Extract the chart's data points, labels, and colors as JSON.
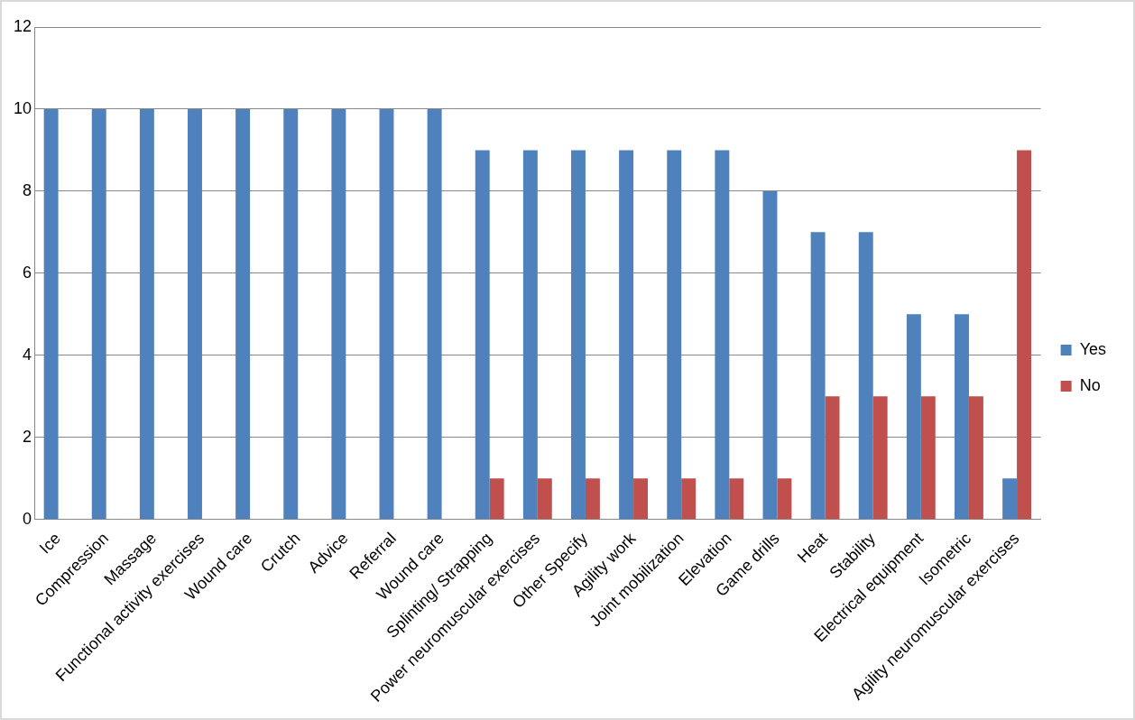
{
  "chart_data": {
    "type": "bar",
    "categories": [
      "Ice",
      "Compression",
      "Massage",
      "Functional activity exercises",
      "Wound care",
      "Crutch",
      "Advice",
      "Referral",
      "Wound care",
      "Splinting/ Strapping",
      "Power neuromuscular exercises",
      "Other Specify",
      "Agility work",
      "Joint mobilization",
      "Elevation",
      "Game drills",
      "Heat",
      "Stability",
      "Electrical equipment",
      "Isometric",
      "Agility neuromuscular exercises"
    ],
    "series": [
      {
        "name": "Yes",
        "color": "#4f81bd",
        "values": [
          10,
          10,
          10,
          10,
          10,
          10,
          10,
          10,
          10,
          9,
          9,
          9,
          9,
          9,
          9,
          8,
          7,
          7,
          5,
          5,
          1
        ]
      },
      {
        "name": "No",
        "color": "#c0504d",
        "values": [
          0,
          0,
          0,
          0,
          0,
          0,
          0,
          0,
          0,
          1,
          1,
          1,
          1,
          1,
          1,
          1,
          3,
          3,
          3,
          3,
          9
        ]
      }
    ],
    "ylim": [
      0,
      12
    ],
    "yticks": [
      0,
      2,
      4,
      6,
      8,
      10,
      12
    ],
    "grid": "y",
    "legend": "right"
  }
}
